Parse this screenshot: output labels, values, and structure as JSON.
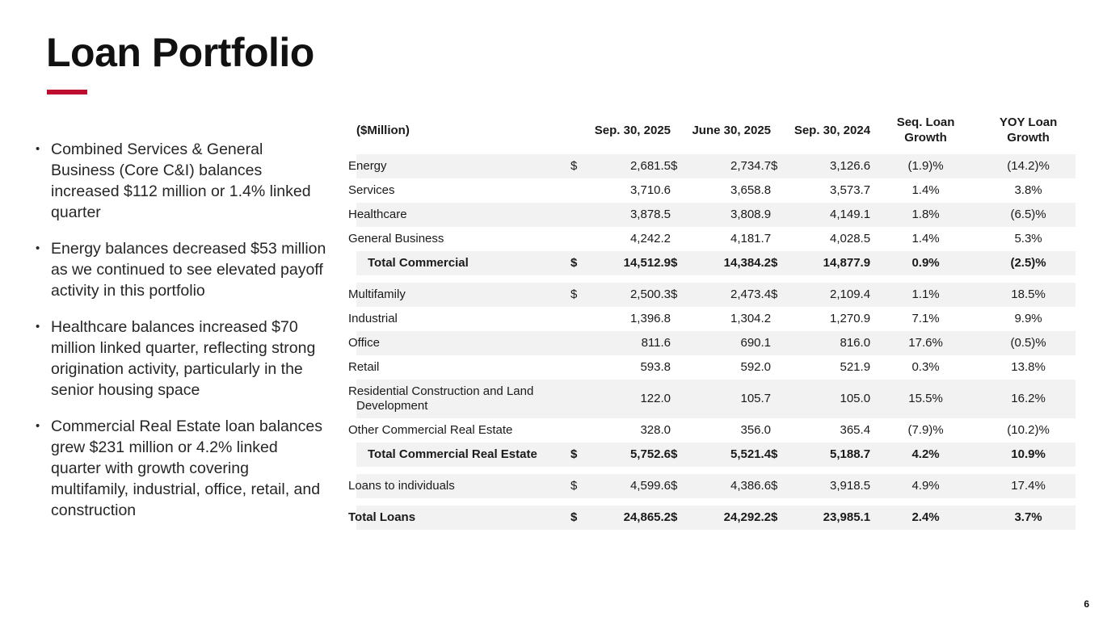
{
  "slide": {
    "title": "Loan Portfolio",
    "accent_color": "#BF0D30",
    "page_number": "6"
  },
  "bullets": [
    "Combined Services & General Business (Core C&I) balances increased $112 million or 1.4% linked quarter",
    "Energy balances decreased $53 million as we continued to see elevated payoff activity in this portfolio",
    "Healthcare balances increased $70 million linked quarter, reflecting strong origination activity, particularly in the senior housing space",
    "Commercial Real Estate loan balances grew $231 million or 4.2% linked quarter with growth covering multifamily, industrial, office, retail, and construction"
  ],
  "table": {
    "unit_label": "($Million)",
    "columns": [
      "Sep. 30, 2025",
      "June 30, 2025",
      "Sep. 30, 2024",
      "Seq. Loan\nGrowth",
      "YOY Loan\nGrowth"
    ],
    "stripe_color": "#F2F2F2",
    "rows": [
      {
        "label": "Energy",
        "d1": "$",
        "v1": "2,681.5",
        "d2": "$",
        "v2": "2,734.7",
        "d3": "$",
        "v3": "3,126.6",
        "seq": "(1.9)%",
        "yoy": "(14.2)%",
        "shade": true,
        "bold": false,
        "indent": false,
        "gap_after": false
      },
      {
        "label": "Services",
        "d1": "",
        "v1": "3,710.6",
        "d2": "",
        "v2": "3,658.8",
        "d3": "",
        "v3": "3,573.7",
        "seq": "1.4%",
        "yoy": "3.8%",
        "shade": false,
        "bold": false,
        "indent": false,
        "gap_after": false
      },
      {
        "label": "Healthcare",
        "d1": "",
        "v1": "3,878.5",
        "d2": "",
        "v2": "3,808.9",
        "d3": "",
        "v3": "4,149.1",
        "seq": "1.8%",
        "yoy": "(6.5)%",
        "shade": true,
        "bold": false,
        "indent": false,
        "gap_after": false
      },
      {
        "label": "General Business",
        "d1": "",
        "v1": "4,242.2",
        "d2": "",
        "v2": "4,181.7",
        "d3": "",
        "v3": "4,028.5",
        "seq": "1.4%",
        "yoy": "5.3%",
        "shade": false,
        "bold": false,
        "indent": false,
        "gap_after": false
      },
      {
        "label": "Total Commercial",
        "d1": "$",
        "v1": "14,512.9",
        "d2": "$",
        "v2": "14,384.2",
        "d3": "$",
        "v3": "14,877.9",
        "seq": "0.9%",
        "yoy": "(2.5)%",
        "shade": true,
        "bold": true,
        "indent": true,
        "gap_after": true
      },
      {
        "label": "Multifamily",
        "d1": "$",
        "v1": "2,500.3",
        "d2": "$",
        "v2": "2,473.4",
        "d3": "$",
        "v3": "2,109.4",
        "seq": "1.1%",
        "yoy": "18.5%",
        "shade": true,
        "bold": false,
        "indent": false,
        "gap_after": false
      },
      {
        "label": "Industrial",
        "d1": "",
        "v1": "1,396.8",
        "d2": "",
        "v2": "1,304.2",
        "d3": "",
        "v3": "1,270.9",
        "seq": "7.1%",
        "yoy": "9.9%",
        "shade": false,
        "bold": false,
        "indent": false,
        "gap_after": false
      },
      {
        "label": "Office",
        "d1": "",
        "v1": "811.6",
        "d2": "",
        "v2": "690.1",
        "d3": "",
        "v3": "816.0",
        "seq": "17.6%",
        "yoy": "(0.5)%",
        "shade": true,
        "bold": false,
        "indent": false,
        "gap_after": false
      },
      {
        "label": "Retail",
        "d1": "",
        "v1": "593.8",
        "d2": "",
        "v2": "592.0",
        "d3": "",
        "v3": "521.9",
        "seq": "0.3%",
        "yoy": "13.8%",
        "shade": false,
        "bold": false,
        "indent": false,
        "gap_after": false
      },
      {
        "label": "Residential Construction and Land Development",
        "d1": "",
        "v1": "122.0",
        "d2": "",
        "v2": "105.7",
        "d3": "",
        "v3": "105.0",
        "seq": "15.5%",
        "yoy": "16.2%",
        "shade": true,
        "bold": false,
        "indent": false,
        "gap_after": false
      },
      {
        "label": "Other Commercial Real Estate",
        "d1": "",
        "v1": "328.0",
        "d2": "",
        "v2": "356.0",
        "d3": "",
        "v3": "365.4",
        "seq": "(7.9)%",
        "yoy": "(10.2)%",
        "shade": false,
        "bold": false,
        "indent": false,
        "gap_after": false
      },
      {
        "label": "Total Commercial Real Estate",
        "d1": "$",
        "v1": "5,752.6",
        "d2": "$",
        "v2": "5,521.4",
        "d3": "$",
        "v3": "5,188.7",
        "seq": "4.2%",
        "yoy": "10.9%",
        "shade": true,
        "bold": true,
        "indent": true,
        "gap_after": true
      },
      {
        "label": "Loans to individuals",
        "d1": "$",
        "v1": "4,599.6",
        "d2": "$",
        "v2": "4,386.6",
        "d3": "$",
        "v3": "3,918.5",
        "seq": "4.9%",
        "yoy": "17.4%",
        "shade": true,
        "bold": false,
        "indent": false,
        "gap_after": true
      },
      {
        "label": "Total Loans",
        "d1": "$",
        "v1": "24,865.2",
        "d2": "$",
        "v2": "24,292.2",
        "d3": "$",
        "v3": "23,985.1",
        "seq": "2.4%",
        "yoy": "3.7%",
        "shade": true,
        "bold": true,
        "indent": false,
        "gap_after": false
      }
    ]
  }
}
